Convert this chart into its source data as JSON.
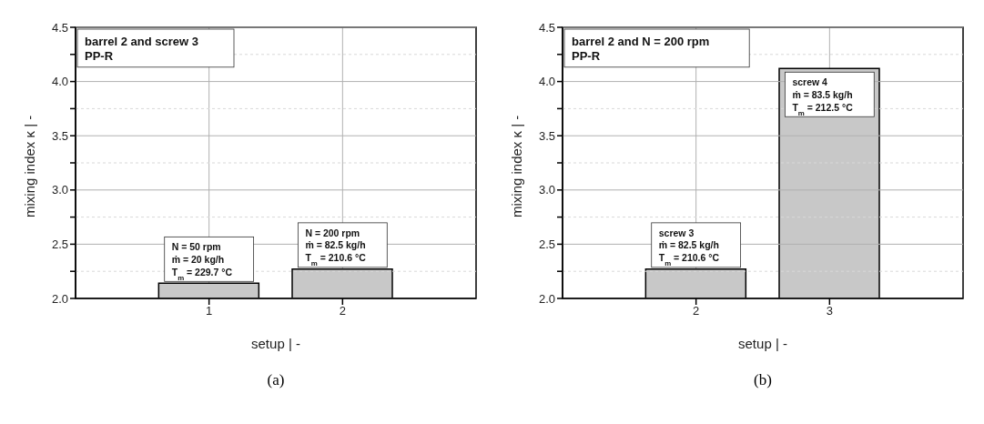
{
  "chart_data": [
    {
      "type": "bar",
      "title": "barrel 2 and screw 3\nPP-R",
      "xlabel": "setup  |  -",
      "ylabel": "mixing index κ  |  -",
      "x": [
        1,
        2
      ],
      "values": [
        2.14,
        2.27
      ],
      "color": "#c8c8c8",
      "xlim": [
        0,
        3
      ],
      "xticks": [
        1,
        2
      ],
      "ylim": [
        2.0,
        4.5
      ],
      "yticks": [
        {
          "value": 2,
          "label": "2.0"
        },
        {
          "value": 2.25,
          "label": null
        },
        2.5,
        {
          "value": 2.75,
          "label": null
        },
        {
          "value": 3,
          "label": "3.0"
        },
        {
          "value": 3.25,
          "label": null
        },
        3.5,
        {
          "value": 3.75,
          "label": null
        },
        {
          "value": 4,
          "label": "4.0"
        },
        {
          "value": 4.25,
          "label": null
        },
        4.5
      ],
      "grid": true,
      "annotations": [
        {
          "text": "N = 50 rpm\nṁ = 20 kg/h\nT$_{m}$ = 229.7 °C",
          "x": 1,
          "y": 2.14
        },
        {
          "text": "N = 200 rpm\nṁ = 82.5 kg/h\nT$_{m}$ = 210.6 °C",
          "x": 2,
          "y": 2.27
        },
        "(a)"
      ]
    },
    {
      "type": "bar",
      "title": "barrel 2 and N = 200 rpm\nPP-R",
      "xlabel": "setup  |  -",
      "ylabel": "mixing index κ  |  -",
      "x": [
        2,
        3
      ],
      "values": [
        2.27,
        4.12
      ],
      "color": "#c8c8c8",
      "xlim": [
        1,
        4
      ],
      "xticks": [
        2,
        3
      ],
      "ylim": [
        2.0,
        4.5
      ],
      "yticks": [
        {
          "value": 2,
          "label": "2.0"
        },
        {
          "value": 2.25,
          "label": null
        },
        2.5,
        {
          "value": 2.75,
          "label": null
        },
        {
          "value": 3,
          "label": "3.0"
        },
        {
          "value": 3.25,
          "label": null
        },
        3.5,
        {
          "value": 3.75,
          "label": null
        },
        {
          "value": 4,
          "label": "4.0"
        },
        {
          "value": 4.25,
          "label": null
        },
        4.5
      ],
      "grid": true,
      "annotations": [
        {
          "text": "screw 3\nṁ = 82.5 kg/h\nT$_{m}$ = 210.6 °C",
          "x": 2,
          "y": 2.27
        },
        {
          "text": "screw 4\nṁ = 83.5 kg/h\nT$_{m}$ = 212.5 °C",
          "x": 3,
          "y": 4.12
        },
        "(b)"
      ]
    }
  ]
}
